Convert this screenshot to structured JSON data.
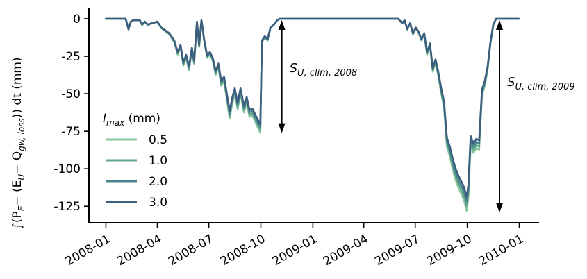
{
  "chart_data": {
    "type": "line",
    "ylabel": "∫(P_E − (E_U − Q_gw,loss)) dt  (mm)",
    "ylabel_parts": {
      "integral": "∫(P",
      "sub1": "E",
      "mid": "− (E",
      "sub2": "U",
      "mid2": "− Q",
      "sub3": "gw, loss",
      "end": ")) dt  (mm)"
    },
    "xlabel": "",
    "x_ticks": [
      "2008-01",
      "2008-04",
      "2008-07",
      "2008-10",
      "2009-01",
      "2009-04",
      "2009-07",
      "2009-10",
      "2010-01"
    ],
    "y_ticks": [
      0,
      -25,
      -50,
      -75,
      -100,
      -125
    ],
    "ylim": [
      -136,
      6
    ],
    "xlim": [
      "2007-12-02",
      "2010-02-05"
    ],
    "legend": {
      "title": "I_max (mm)",
      "title_main": "I",
      "title_sub": "max",
      "title_unit": " (mm)",
      "placement": "center-left",
      "entries": [
        "0.5",
        "1.0",
        "2.0",
        "3.0"
      ]
    },
    "series": [
      {
        "name": "0.5",
        "color": "#8cc7a0",
        "scale": 1.04
      },
      {
        "name": "1.0",
        "color": "#62a68d",
        "scale": 1.015
      },
      {
        "name": "2.0",
        "color": "#4a8389",
        "scale": 0.99
      },
      {
        "name": "3.0",
        "color": "#3d5f7f",
        "scale": 0.965
      }
    ],
    "base_profile": [
      [
        "2008-01-01",
        0
      ],
      [
        "2008-02-05",
        0
      ],
      [
        "2008-02-10",
        -7
      ],
      [
        "2008-02-14",
        -2
      ],
      [
        "2008-02-18",
        -1
      ],
      [
        "2008-03-01",
        -1
      ],
      [
        "2008-03-05",
        -4
      ],
      [
        "2008-03-10",
        -2
      ],
      [
        "2008-03-15",
        -4
      ],
      [
        "2008-03-22",
        -3
      ],
      [
        "2008-04-01",
        -2
      ],
      [
        "2008-04-08",
        -6
      ],
      [
        "2008-04-15",
        -8
      ],
      [
        "2008-04-22",
        -10
      ],
      [
        "2008-05-01",
        -15
      ],
      [
        "2008-05-07",
        -23
      ],
      [
        "2008-05-12",
        -18
      ],
      [
        "2008-05-17",
        -30
      ],
      [
        "2008-05-22",
        -25
      ],
      [
        "2008-05-27",
        -33
      ],
      [
        "2008-06-01",
        -20
      ],
      [
        "2008-06-05",
        -29
      ],
      [
        "2008-06-10",
        -2
      ],
      [
        "2008-06-14",
        -18
      ],
      [
        "2008-06-18",
        -1
      ],
      [
        "2008-06-23",
        -15
      ],
      [
        "2008-06-28",
        -25
      ],
      [
        "2008-07-03",
        -23
      ],
      [
        "2008-07-08",
        -27
      ],
      [
        "2008-07-13",
        -36
      ],
      [
        "2008-07-18",
        -31
      ],
      [
        "2008-07-23",
        -43
      ],
      [
        "2008-07-28",
        -40
      ],
      [
        "2008-08-02",
        -52
      ],
      [
        "2008-08-07",
        -64
      ],
      [
        "2008-08-11",
        -55
      ],
      [
        "2008-08-16",
        -48
      ],
      [
        "2008-08-21",
        -58
      ],
      [
        "2008-08-26",
        -48
      ],
      [
        "2008-09-01",
        -60
      ],
      [
        "2008-09-06",
        -54
      ],
      [
        "2008-09-11",
        -63
      ],
      [
        "2008-09-16",
        -62
      ],
      [
        "2008-09-21",
        -66
      ],
      [
        "2008-09-26",
        -70
      ],
      [
        "2008-09-30",
        -73
      ],
      [
        "2008-10-03",
        -15
      ],
      [
        "2008-10-08",
        -12
      ],
      [
        "2008-10-13",
        -14
      ],
      [
        "2008-10-18",
        -6
      ],
      [
        "2008-10-24",
        -4
      ],
      [
        "2008-10-30",
        -1
      ],
      [
        "2008-11-03",
        0
      ],
      [
        "2008-11-05",
        0
      ],
      [
        "2009-06-01",
        0
      ],
      [
        "2009-06-08",
        -3
      ],
      [
        "2009-06-12",
        -1
      ],
      [
        "2009-06-17",
        -7
      ],
      [
        "2009-06-22",
        -3
      ],
      [
        "2009-06-27",
        -10
      ],
      [
        "2009-07-02",
        -6
      ],
      [
        "2009-07-07",
        -9
      ],
      [
        "2009-07-12",
        -14
      ],
      [
        "2009-07-17",
        -10
      ],
      [
        "2009-07-22",
        -23
      ],
      [
        "2009-07-27",
        -17
      ],
      [
        "2009-08-01",
        -34
      ],
      [
        "2009-08-06",
        -28
      ],
      [
        "2009-08-11",
        -37
      ],
      [
        "2009-08-16",
        -48
      ],
      [
        "2009-08-21",
        -57
      ],
      [
        "2009-08-26",
        -82
      ],
      [
        "2009-08-31",
        -88
      ],
      [
        "2009-09-05",
        -96
      ],
      [
        "2009-09-10",
        -103
      ],
      [
        "2009-09-15",
        -108
      ],
      [
        "2009-09-20",
        -112
      ],
      [
        "2009-09-25",
        -116
      ],
      [
        "2009-09-30",
        -123
      ],
      [
        "2009-10-03",
        -115
      ],
      [
        "2009-10-07",
        -81
      ],
      [
        "2009-10-12",
        -86
      ],
      [
        "2009-10-17",
        -83
      ],
      [
        "2009-10-22",
        -84
      ],
      [
        "2009-10-27",
        -49
      ],
      [
        "2009-11-01",
        -43
      ],
      [
        "2009-11-06",
        -33
      ],
      [
        "2009-11-11",
        -16
      ],
      [
        "2009-11-16",
        -4
      ],
      [
        "2009-11-21",
        0
      ],
      [
        "2009-12-31",
        0
      ]
    ],
    "annotations": [
      {
        "label_main": "S",
        "label_sub": "U, clim, 2008",
        "x": "2008-11-07",
        "y_from": 0,
        "y_to": -78
      },
      {
        "label_main": "S",
        "label_sub": "U, clim, 2009",
        "x": "2009-11-27",
        "y_from": 0,
        "y_to": -131
      }
    ]
  }
}
